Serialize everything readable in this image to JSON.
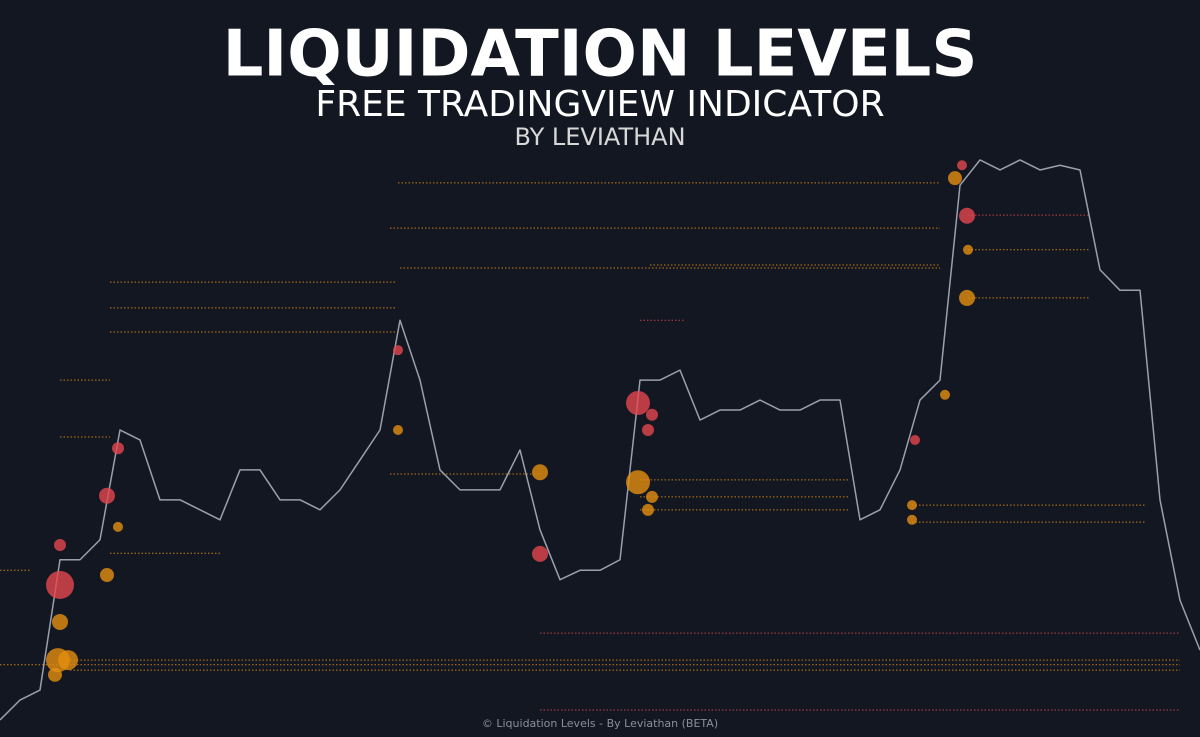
{
  "header": {
    "title": "LIQUIDATION LEVELS",
    "subtitle": "FREE TRADINGVIEW INDICATOR",
    "byline": "BY LEVIATHAN"
  },
  "footer": "© Liquidation Levels - By Leviathan (BETA)",
  "chart_data": {
    "type": "line",
    "x": [
      0,
      1,
      2,
      3,
      4,
      5,
      6,
      7,
      8,
      9,
      10,
      11,
      12,
      13,
      14,
      15,
      16,
      17,
      18,
      19,
      20,
      21,
      22,
      23,
      24,
      25,
      26,
      27,
      28,
      29,
      30,
      31,
      32,
      33,
      34,
      35,
      36,
      37,
      38,
      39,
      40,
      41,
      42,
      43,
      44,
      45,
      46,
      47,
      48,
      49,
      50,
      51,
      52,
      53,
      54,
      55,
      56,
      57,
      58,
      59,
      60
    ],
    "xlim": [
      0,
      60
    ],
    "ylim": [
      0,
      100
    ],
    "series": [
      {
        "color": "#9aa0ad",
        "values": [
          2.9,
          6.3,
          8.0,
          30.2,
          30.2,
          33.6,
          52.3,
          50.6,
          40.4,
          40.4,
          38.7,
          37.0,
          45.5,
          45.5,
          40.4,
          40.4,
          38.7,
          42.1,
          47.2,
          52.3,
          71.0,
          60.8,
          45.5,
          42.1,
          42.1,
          42.1,
          48.9,
          35.3,
          26.8,
          28.4,
          28.4,
          30.2,
          60.8,
          60.8,
          62.5,
          54.0,
          55.7,
          55.7,
          57.4,
          55.7,
          55.7,
          57.4,
          57.4,
          37.0,
          38.7,
          45.5,
          57.4,
          60.8,
          94.0,
          98.3,
          96.6,
          98.3,
          96.6,
          97.4,
          96.6,
          79.6,
          76.1,
          76.1,
          40.4,
          23.3,
          14.8
        ]
      }
    ],
    "levels": [
      {
        "y": 13.1,
        "x0": 3.5,
        "x1": 59,
        "color": "#e38f0f"
      },
      {
        "y": 12.3,
        "x0": 0,
        "x1": 59,
        "color": "#e38f0f"
      },
      {
        "y": 11.4,
        "x0": 3.5,
        "x1": 59,
        "color": "#e38f0f"
      },
      {
        "y": 17.7,
        "x0": 27,
        "x1": 59,
        "color": "#e5464f"
      },
      {
        "y": 4.6,
        "x0": 27,
        "x1": 59,
        "color": "#e5464f"
      },
      {
        "y": 28.4,
        "x0": 0,
        "x1": 1.5,
        "color": "#e38f0f"
      },
      {
        "y": 94.4,
        "x0": 19.9,
        "x1": 47,
        "color": "#e38f0f"
      },
      {
        "y": 86.7,
        "x0": 19.5,
        "x1": 47,
        "color": "#e38f0f"
      },
      {
        "y": 79.9,
        "x0": 20,
        "x1": 47,
        "color": "#e38f0f"
      },
      {
        "y": 80.4,
        "x0": 32.5,
        "x1": 47,
        "color": "#e38f0f"
      },
      {
        "y": 77.5,
        "x0": 5.5,
        "x1": 19.8,
        "color": "#e38f0f"
      },
      {
        "y": 73.1,
        "x0": 5.5,
        "x1": 19.8,
        "color": "#e38f0f"
      },
      {
        "y": 69.0,
        "x0": 5.5,
        "x1": 19.8,
        "color": "#e38f0f"
      },
      {
        "y": 60.8,
        "x0": 3,
        "x1": 5.5,
        "color": "#e38f0f"
      },
      {
        "y": 51.1,
        "x0": 3,
        "x1": 5.5,
        "color": "#e38f0f"
      },
      {
        "y": 31.3,
        "x0": 5.5,
        "x1": 11,
        "color": "#e38f0f"
      },
      {
        "y": 44.8,
        "x0": 19.5,
        "x1": 27,
        "color": "#e38f0f"
      },
      {
        "y": 43.8,
        "x0": 32,
        "x1": 42.5,
        "color": "#e38f0f"
      },
      {
        "y": 40.9,
        "x0": 32,
        "x1": 42.5,
        "color": "#e38f0f"
      },
      {
        "y": 38.7,
        "x0": 32,
        "x1": 42.5,
        "color": "#e38f0f"
      },
      {
        "y": 39.5,
        "x0": 45.6,
        "x1": 57.3,
        "color": "#e38f0f"
      },
      {
        "y": 36.6,
        "x0": 45.6,
        "x1": 57.3,
        "color": "#e38f0f"
      },
      {
        "y": 71.0,
        "x0": 32,
        "x1": 34.2,
        "color": "#e5464f"
      },
      {
        "y": 88.9,
        "x0": 48.4,
        "x1": 54.5,
        "color": "#e5464f"
      },
      {
        "y": 74.8,
        "x0": 48.4,
        "x1": 54.5,
        "color": "#e38f0f"
      },
      {
        "y": 83.0,
        "x0": 48.4,
        "x1": 54.5,
        "color": "#e38f0f"
      }
    ],
    "bubbles": [
      {
        "x": 3,
        "y": 25.9,
        "size": 14,
        "color": "#e5464f"
      },
      {
        "x": 3,
        "y": 32.7,
        "size": 6,
        "color": "#e5464f"
      },
      {
        "x": 3,
        "y": 19.6,
        "size": 8,
        "color": "#e38f0f"
      },
      {
        "x": 2.9,
        "y": 13.1,
        "size": 12,
        "color": "#e38f0f"
      },
      {
        "x": 3.4,
        "y": 13.1,
        "size": 10,
        "color": "#e38f0f"
      },
      {
        "x": 2.75,
        "y": 10.6,
        "size": 7,
        "color": "#e38f0f"
      },
      {
        "x": 5.35,
        "y": 41.1,
        "size": 8,
        "color": "#e5464f"
      },
      {
        "x": 5.9,
        "y": 49.2,
        "size": 6,
        "color": "#e5464f"
      },
      {
        "x": 5.35,
        "y": 27.6,
        "size": 7,
        "color": "#e38f0f"
      },
      {
        "x": 5.9,
        "y": 35.8,
        "size": 5,
        "color": "#e38f0f"
      },
      {
        "x": 19.9,
        "y": 65.9,
        "size": 5,
        "color": "#e5464f"
      },
      {
        "x": 19.9,
        "y": 52.3,
        "size": 5,
        "color": "#e38f0f"
      },
      {
        "x": 27,
        "y": 45.1,
        "size": 8,
        "color": "#e38f0f"
      },
      {
        "x": 27,
        "y": 31.2,
        "size": 8,
        "color": "#e5464f"
      },
      {
        "x": 31.9,
        "y": 56.9,
        "size": 12,
        "color": "#e5464f"
      },
      {
        "x": 32.6,
        "y": 54.9,
        "size": 6,
        "color": "#e5464f"
      },
      {
        "x": 32.4,
        "y": 52.3,
        "size": 6,
        "color": "#e5464f"
      },
      {
        "x": 31.9,
        "y": 43.4,
        "size": 12,
        "color": "#e38f0f"
      },
      {
        "x": 32.6,
        "y": 40.9,
        "size": 6,
        "color": "#e38f0f"
      },
      {
        "x": 32.4,
        "y": 38.7,
        "size": 6,
        "color": "#e38f0f"
      },
      {
        "x": 45.6,
        "y": 39.5,
        "size": 5,
        "color": "#e38f0f"
      },
      {
        "x": 45.6,
        "y": 37.0,
        "size": 5,
        "color": "#e38f0f"
      },
      {
        "x": 45.75,
        "y": 50.6,
        "size": 5,
        "color": "#e5464f"
      },
      {
        "x": 47.25,
        "y": 58.3,
        "size": 5,
        "color": "#e38f0f"
      },
      {
        "x": 48.35,
        "y": 88.8,
        "size": 8,
        "color": "#e5464f"
      },
      {
        "x": 47.75,
        "y": 95.2,
        "size": 7,
        "color": "#e38f0f"
      },
      {
        "x": 48.1,
        "y": 97.4,
        "size": 5,
        "color": "#e5464f"
      },
      {
        "x": 48.35,
        "y": 74.8,
        "size": 8,
        "color": "#e38f0f"
      },
      {
        "x": 48.4,
        "y": 83.0,
        "size": 5,
        "color": "#e38f0f"
      }
    ]
  }
}
